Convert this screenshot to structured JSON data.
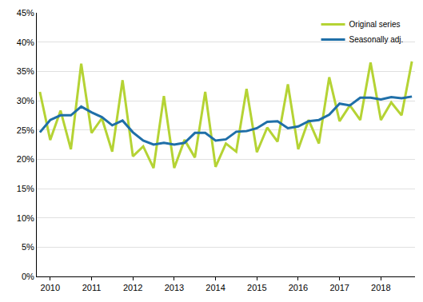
{
  "chart_data": {
    "type": "line",
    "categories": [
      null,
      "2010",
      null,
      null,
      null,
      "2011",
      null,
      null,
      null,
      "2012",
      null,
      null,
      null,
      "2013",
      null,
      null,
      null,
      "2014",
      null,
      null,
      null,
      "2015",
      null,
      null,
      null,
      "2016",
      null,
      null,
      null,
      "2017",
      null,
      null,
      null,
      "2018",
      null,
      null,
      null
    ],
    "series": [
      {
        "name": "Original series",
        "color": "#b5d334",
        "values": [
          31.5,
          23.3,
          28.3,
          21.7,
          36.3,
          24.5,
          27.0,
          21.3,
          33.5,
          20.5,
          22.2,
          18.5,
          30.8,
          18.5,
          23.3,
          20.3,
          31.5,
          18.7,
          22.7,
          21.3,
          32.0,
          21.2,
          25.4,
          23.0,
          32.8,
          21.7,
          26.7,
          22.7,
          34.0,
          26.5,
          29.2,
          26.7,
          36.5,
          26.7,
          29.7,
          27.5,
          36.7
        ]
      },
      {
        "name": "Seasonally adj.",
        "color": "#1f6fa8",
        "values": [
          24.6,
          26.7,
          27.5,
          27.5,
          29.0,
          28.0,
          27.2,
          25.8,
          26.6,
          24.6,
          23.2,
          22.5,
          22.8,
          22.5,
          22.8,
          24.5,
          24.5,
          23.2,
          23.4,
          24.7,
          24.8,
          25.3,
          26.4,
          26.5,
          25.3,
          25.6,
          26.5,
          26.7,
          27.6,
          29.5,
          29.2,
          30.5,
          30.5,
          30.2,
          30.6,
          30.4,
          30.7
        ]
      }
    ],
    "ylim": [
      0,
      45
    ],
    "yticks": [
      {
        "value": 0,
        "label": "0%"
      },
      {
        "value": 5,
        "label": "5%"
      },
      {
        "value": 10,
        "label": "10%"
      },
      {
        "value": 15,
        "label": "15%"
      },
      {
        "value": 20,
        "label": "20%"
      },
      {
        "value": 25,
        "label": "25%"
      },
      {
        "value": 30,
        "label": "30%"
      },
      {
        "value": 35,
        "label": "35%"
      },
      {
        "value": 40,
        "label": "40%"
      },
      {
        "value": 45,
        "label": "45%"
      }
    ],
    "grid": true,
    "legend": "upper right"
  }
}
